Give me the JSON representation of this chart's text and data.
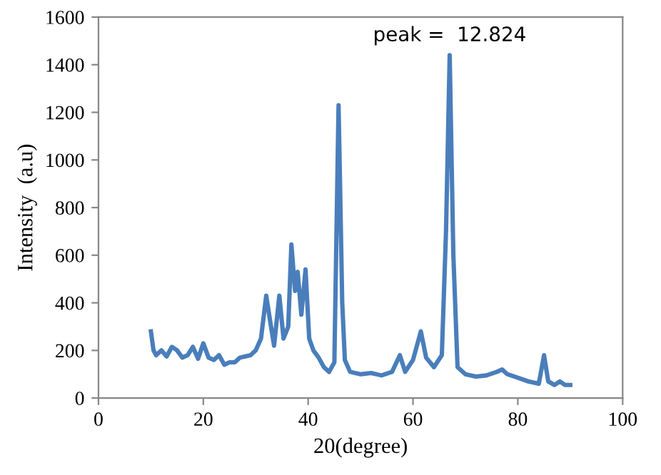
{
  "chart_data": {
    "type": "line",
    "xlabel": "20(degree)",
    "ylabel": "Intensity  (a.u)",
    "xlim": [
      0,
      100
    ],
    "xticks": [
      0,
      20,
      40,
      60,
      80,
      100
    ],
    "ylim": [
      0,
      1600
    ],
    "yticks": [
      0,
      200,
      400,
      600,
      800,
      1000,
      1200,
      1400,
      1600
    ],
    "grid": false,
    "marker": "none",
    "line_style": "solid",
    "annotations": [
      {
        "text": "peak =  12.824",
        "x": 67.0,
        "y": 1440
      }
    ],
    "series": [
      {
        "color": "#4a7ebb",
        "x": [
          10,
          10.5,
          11,
          12,
          13,
          14,
          15,
          16,
          17,
          18,
          19,
          20,
          21,
          22,
          23,
          24,
          25,
          26,
          27,
          28,
          29,
          30,
          31,
          32,
          32.7,
          33.5,
          34.5,
          35.3,
          36.2,
          36.8,
          37.5,
          38,
          38.7,
          39.5,
          40.2,
          41,
          42,
          43,
          44,
          45,
          45.8,
          46.5,
          47,
          48,
          50,
          52,
          54,
          56,
          57.5,
          58.5,
          60,
          61.5,
          62.5,
          64,
          65.5,
          66.3,
          67.0,
          67.7,
          68.5,
          70,
          72,
          74,
          76,
          77,
          78,
          80,
          82,
          84,
          85,
          85.8,
          87,
          88,
          89,
          90
        ],
        "values": [
          280,
          200,
          180,
          200,
          175,
          215,
          200,
          170,
          180,
          215,
          165,
          230,
          170,
          160,
          180,
          140,
          150,
          150,
          170,
          175,
          180,
          200,
          250,
          430,
          330,
          220,
          430,
          250,
          300,
          645,
          450,
          530,
          350,
          540,
          250,
          200,
          170,
          130,
          110,
          150,
          1230,
          400,
          160,
          110,
          100,
          105,
          95,
          110,
          180,
          110,
          160,
          280,
          170,
          130,
          180,
          700,
          1440,
          600,
          130,
          100,
          90,
          95,
          110,
          120,
          100,
          85,
          70,
          60,
          180,
          70,
          55,
          70,
          55,
          55
        ]
      }
    ]
  }
}
